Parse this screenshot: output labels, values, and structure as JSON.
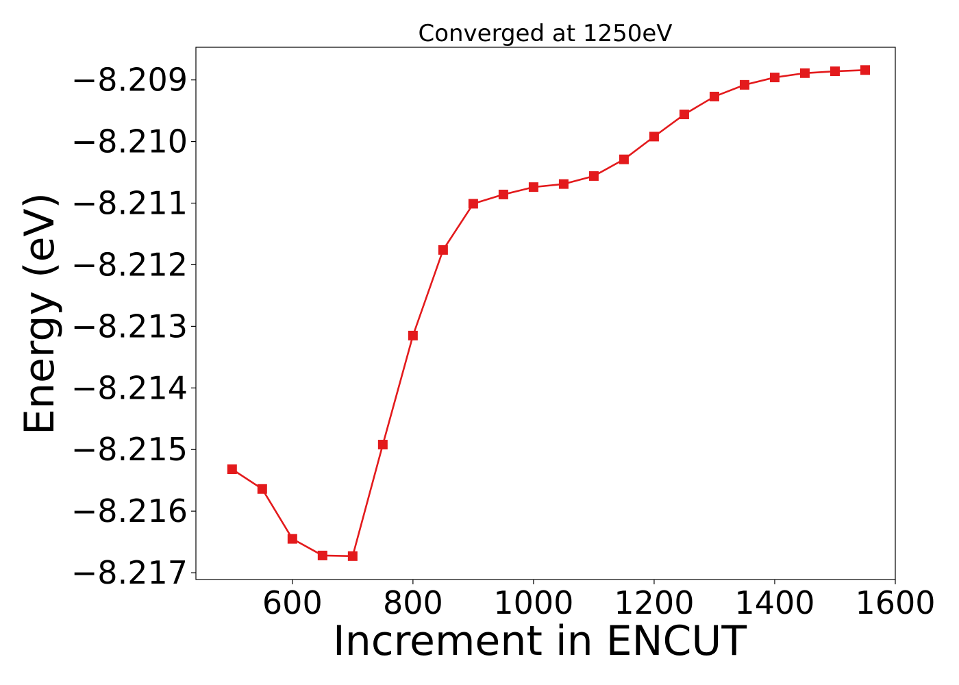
{
  "chart_data": {
    "type": "line",
    "title": "Converged at 1250eV",
    "xlabel": "Increment in ENCUT",
    "ylabel": "Energy (eV)",
    "xlim": [
      440,
      1600
    ],
    "ylim": [
      -8.21711,
      -8.20847
    ],
    "xticks": [
      600,
      800,
      1000,
      1200,
      1400,
      1600
    ],
    "xtick_labels": [
      "600",
      "800",
      "1000",
      "1200",
      "1400",
      "1600"
    ],
    "yticks": [
      -8.209,
      -8.21,
      -8.211,
      -8.212,
      -8.213,
      -8.214,
      -8.215,
      -8.216,
      -8.217
    ],
    "ytick_labels": [
      "−8.209",
      "−8.210",
      "−8.211",
      "−8.212",
      "−8.213",
      "−8.214",
      "−8.215",
      "−8.216",
      "−8.217"
    ],
    "grid": false,
    "series": [
      {
        "color": "#e31a1c",
        "marker": "square",
        "x": [
          500,
          550,
          600,
          650,
          700,
          750,
          800,
          850,
          900,
          950,
          1000,
          1050,
          1100,
          1150,
          1200,
          1250,
          1300,
          1350,
          1400,
          1450,
          1500,
          1550
        ],
        "y": [
          -8.21532,
          -8.21564,
          -8.21645,
          -8.21672,
          -8.21673,
          -8.21492,
          -8.21315,
          -8.21176,
          -8.21101,
          -8.21086,
          -8.21074,
          -8.21069,
          -8.21056,
          -8.21029,
          -8.20992,
          -8.20956,
          -8.20927,
          -8.20908,
          -8.20896,
          -8.20889,
          -8.20886,
          -8.20884
        ]
      }
    ]
  }
}
